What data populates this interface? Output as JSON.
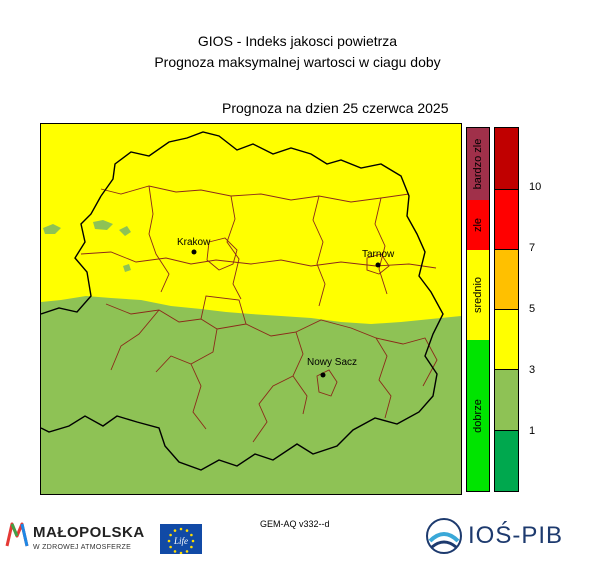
{
  "header": {
    "title": "GIOS - Indeks jakosci powietrza",
    "subtitle": "Prognoza maksymalnej wartosci w ciagu doby",
    "forecast_date": "Prognoza na dzien  25 czerwca 2025"
  },
  "map": {
    "colors": {
      "yellow": "#ffff00",
      "green": "#8ec255",
      "region_border": "#000000",
      "district_border": "#8b2a1a"
    },
    "cities": [
      {
        "name": "Krakow"
      },
      {
        "name": "Tarnow"
      },
      {
        "name": "Nowy Sacz"
      }
    ]
  },
  "legend": {
    "categories": [
      {
        "label": "bardzo zle",
        "color": "#a0304a"
      },
      {
        "label": "zle",
        "color": "#ff0000"
      },
      {
        "label": "srednio",
        "color": "#ffff00"
      },
      {
        "label": "dobrze",
        "color": "#00e400"
      }
    ],
    "levels": [
      {
        "color": "#c00000"
      },
      {
        "color": "#ff0000"
      },
      {
        "color": "#ffc000"
      },
      {
        "color": "#ffff00"
      },
      {
        "color": "#8ec255"
      },
      {
        "color": "#00a84e"
      }
    ],
    "ticks": [
      "10",
      "7",
      "5",
      "3",
      "1"
    ]
  },
  "footer": {
    "model": "GEM-AQ v332--d",
    "malopolska_name": "MAŁOPOLSKA",
    "malopolska_tagline": "W ZDROWEJ ATMOSFERZE",
    "eu_life_text": "Life",
    "institute_name": "IOŚ-PIB"
  }
}
